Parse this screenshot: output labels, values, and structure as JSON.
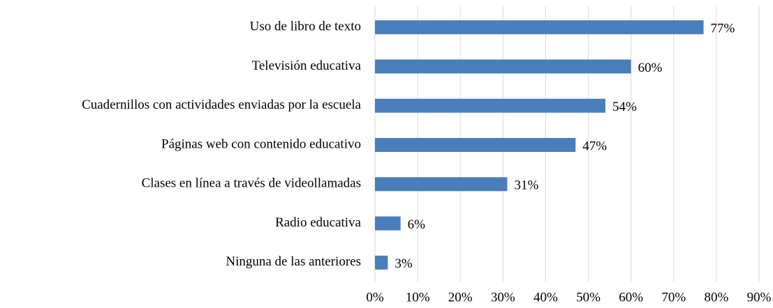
{
  "chart_data": {
    "type": "bar",
    "orientation": "horizontal",
    "categories": [
      "Uso de libro de texto",
      "Televisión educativa",
      "Cuadernillos con actividades enviadas por la escuela",
      "Páginas web con contenido educativo",
      "Clases en línea a través de videollamadas",
      "Radio educativa",
      "Ninguna de las anteriores"
    ],
    "values": [
      77,
      60,
      54,
      47,
      31,
      6,
      3
    ],
    "value_labels": [
      "77%",
      "60%",
      "54%",
      "47%",
      "31%",
      "6%",
      "3%"
    ],
    "color": "#4a7ebb",
    "xlim": [
      0,
      90
    ],
    "xticks": [
      {
        "value": 0,
        "label": "0%"
      },
      {
        "value": 10,
        "label": "10%"
      },
      {
        "value": 20,
        "label": "20%"
      },
      {
        "value": 30,
        "label": "30%"
      },
      {
        "value": 40,
        "label": "40%"
      },
      {
        "value": 50,
        "label": "50%"
      },
      {
        "value": 60,
        "label": "60%"
      },
      {
        "value": 70,
        "label": "70%"
      },
      {
        "value": 80,
        "label": "80%"
      },
      {
        "value": 90,
        "label": "90%"
      }
    ],
    "grid": true
  }
}
